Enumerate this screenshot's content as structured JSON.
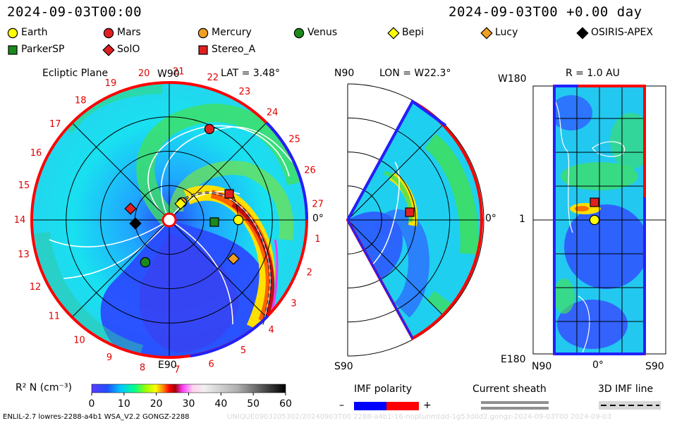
{
  "header": {
    "time_left": "2024-09-03T00:00",
    "time_right": "2024-09-03T00 +0.00 day"
  },
  "legend": [
    {
      "name": "Earth",
      "shape": "circle",
      "color": "#ffff00"
    },
    {
      "name": "Mars",
      "shape": "circle",
      "color": "#e02020"
    },
    {
      "name": "Mercury",
      "shape": "circle",
      "color": "#f0a020"
    },
    {
      "name": "Venus",
      "shape": "circle",
      "color": "#1a8a1a"
    },
    {
      "name": "Bepi",
      "shape": "diamond",
      "color": "#ffff00"
    },
    {
      "name": "Lucy",
      "shape": "diamond",
      "color": "#f0a020"
    },
    {
      "name": "OSIRIS-APEX",
      "shape": "diamond",
      "color": "#000000"
    },
    {
      "name": "ParkerSP",
      "shape": "square",
      "color": "#1a8a1a"
    },
    {
      "name": "SolO",
      "shape": "diamond",
      "color": "#e02020"
    },
    {
      "name": "Stereo_A",
      "shape": "square",
      "color": "#e02020"
    }
  ],
  "panel_ecliptic": {
    "title": "Ecliptic Plane",
    "lat": "LAT = 3.48°",
    "top_label": "W90",
    "bottom_label": "E90",
    "right_label": "0°",
    "carrington_ticks": [
      "1",
      "2",
      "3",
      "4",
      "5",
      "6",
      "7",
      "8",
      "9",
      "10",
      "11",
      "12",
      "13",
      "14",
      "15",
      "16",
      "17",
      "18",
      "19",
      "20",
      "21",
      "22",
      "23",
      "24",
      "25",
      "26",
      "27"
    ]
  },
  "panel_meridional": {
    "top_label": "N90",
    "bottom_label": "S90",
    "lon": "LON = W22.3°",
    "right_label": "0°"
  },
  "panel_radial": {
    "title": "R = 1.0 AU",
    "top_left": "W180",
    "mid_left": "1",
    "bottom_left": "E180",
    "xticks": [
      "N90",
      "0°",
      "S90"
    ]
  },
  "colorbar": {
    "label": "R² N (cm⁻³)",
    "ticks": [
      "0",
      "10",
      "20",
      "30",
      "40",
      "50",
      "60"
    ],
    "min": 0,
    "max": 60
  },
  "imf_polarity": {
    "title": "IMF polarity",
    "minus": "–",
    "plus": "+"
  },
  "current_sheath": {
    "title": "Current sheath"
  },
  "imf_line": {
    "title": "3D IMF line"
  },
  "footer": {
    "model": "ENLIL-2.7 lowres-2288-a4b1 WSA_V2.2 GONGZ-2288",
    "watermark": "UNIQUE0903205302/20240903T00 2288-a4b1-16-noptunmtdd-1g53d0d2.gongz-2024-09-03T00  2024-09-03"
  }
}
